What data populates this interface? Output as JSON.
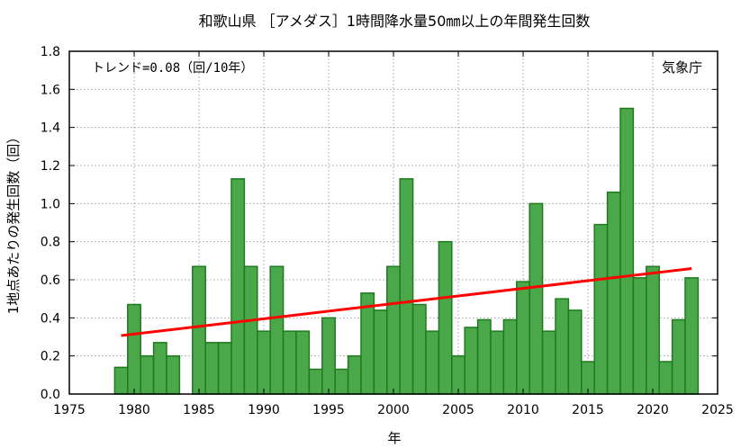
{
  "chart_data": {
    "type": "bar",
    "title": "和歌山県 ［アメダス］1時間降水量50㎜以上の年間発生回数",
    "xlabel": "年",
    "ylabel": "1地点あたりの発生回数（回）",
    "trend_text": "トレンド=0.08（回/10年）",
    "source_text": "気象庁",
    "xlim": [
      1975,
      2025
    ],
    "ylim": [
      0,
      1.8
    ],
    "x_ticks": [
      1975,
      1980,
      1985,
      1990,
      1995,
      2000,
      2005,
      2010,
      2015,
      2020,
      2025
    ],
    "y_ticks": [
      "0.0",
      "0.2",
      "0.4",
      "0.6",
      "0.8",
      "1.0",
      "1.2",
      "1.4",
      "1.6",
      "1.8"
    ],
    "grid": true,
    "years": [
      1979,
      1980,
      1981,
      1982,
      1983,
      1984,
      1985,
      1986,
      1987,
      1988,
      1989,
      1990,
      1991,
      1992,
      1993,
      1994,
      1995,
      1996,
      1997,
      1998,
      1999,
      2000,
      2001,
      2002,
      2003,
      2004,
      2005,
      2006,
      2007,
      2008,
      2009,
      2010,
      2011,
      2012,
      2013,
      2014,
      2015,
      2016,
      2017,
      2018,
      2019,
      2020,
      2021,
      2022,
      2023
    ],
    "values": [
      0.14,
      0.47,
      0.2,
      0.27,
      0.2,
      0,
      0.67,
      0.27,
      0.27,
      1.13,
      0.67,
      0.33,
      0.67,
      0.33,
      0.33,
      0.13,
      0.4,
      0.13,
      0.2,
      0.53,
      0.44,
      0.67,
      1.13,
      0.47,
      0.33,
      0.8,
      0.2,
      0.35,
      0.39,
      0.33,
      0.39,
      0.59,
      1.0,
      0.33,
      0.5,
      0.44,
      0.17,
      0.89,
      1.06,
      1.5,
      0.61,
      0.67,
      0.17,
      0.39,
      0.61
    ],
    "trend_line": {
      "x": [
        1979,
        2023
      ],
      "y": [
        0.307,
        0.659
      ]
    },
    "colors": {
      "bar_fill": "#4aa84a",
      "bar_edge": "#1f7a1f",
      "trend": "#ff0000"
    }
  }
}
